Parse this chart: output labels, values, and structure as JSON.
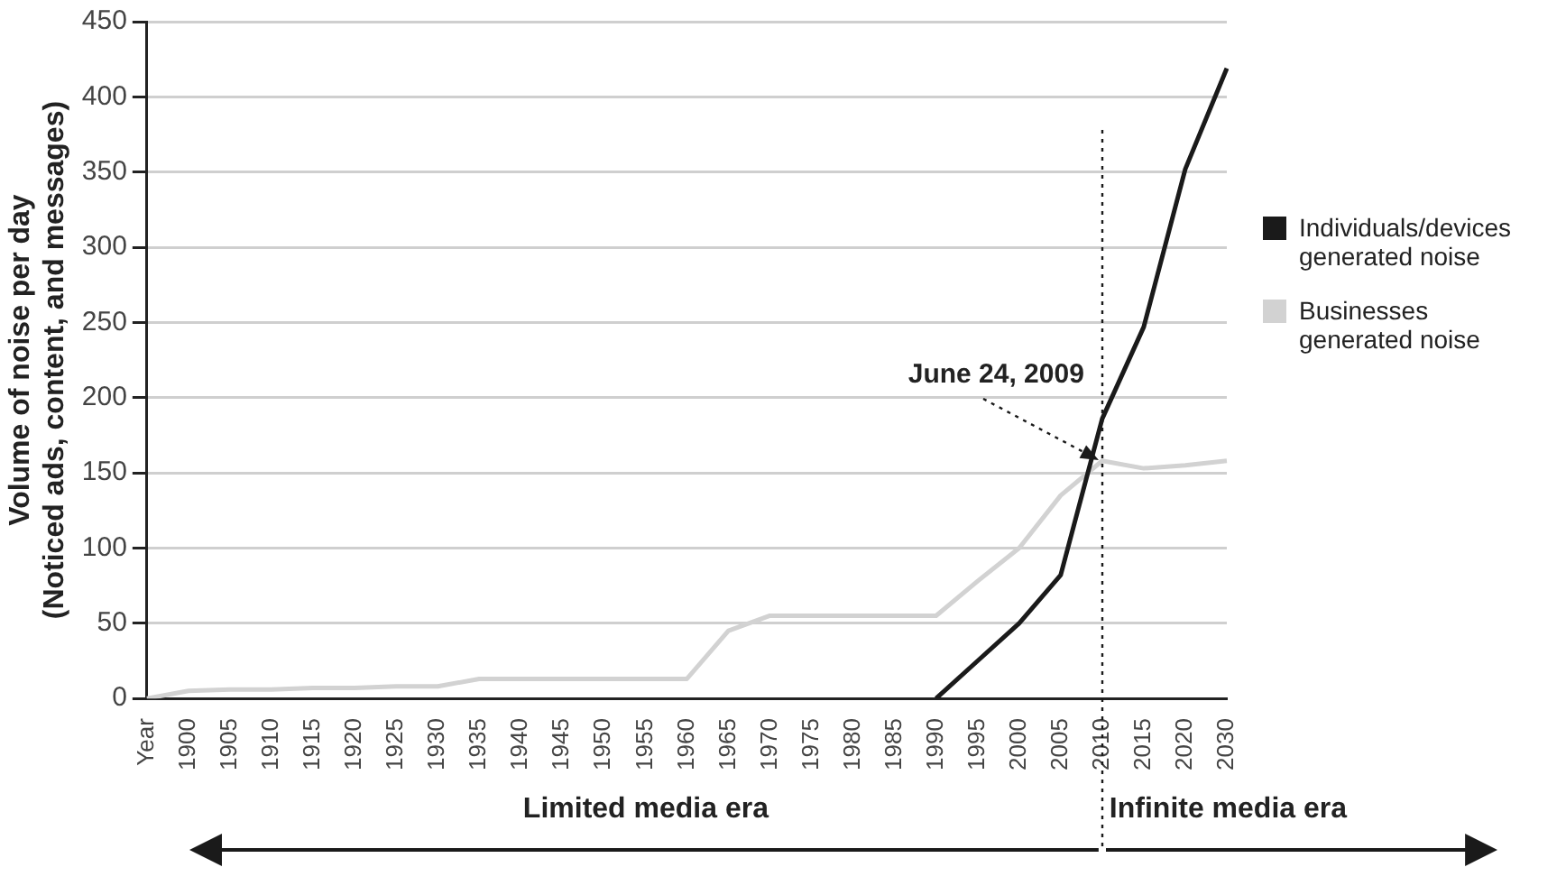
{
  "chart_data": {
    "type": "line",
    "ylabel": "Volume of noise per day\n(Noticed ads, content, and messages)",
    "categories": [
      "Year",
      "1900",
      "1905",
      "1910",
      "1915",
      "1920",
      "1925",
      "1930",
      "1935",
      "1940",
      "1945",
      "1950",
      "1955",
      "1960",
      "1965",
      "1970",
      "1975",
      "1980",
      "1985",
      "1990",
      "1995",
      "2000",
      "2005",
      "2010",
      "2015",
      "2020",
      "2030"
    ],
    "series": [
      {
        "name": "Individuals/devices generated noise",
        "color": "#1a1a1a",
        "values": [
          null,
          null,
          null,
          null,
          null,
          null,
          null,
          null,
          null,
          null,
          null,
          null,
          null,
          null,
          null,
          null,
          null,
          null,
          null,
          0,
          25,
          50,
          82,
          186,
          247,
          352,
          419
        ]
      },
      {
        "name": "Businesses generated noise",
        "color": "#d2d2d2",
        "values": [
          0,
          5,
          6,
          6,
          7,
          7,
          8,
          8,
          13,
          13,
          13,
          13,
          13,
          13,
          45,
          55,
          55,
          55,
          55,
          55,
          78,
          100,
          135,
          158,
          153,
          155,
          158
        ]
      }
    ],
    "ylim": [
      0,
      450
    ],
    "yticks": [
      0,
      50,
      100,
      150,
      200,
      250,
      300,
      350,
      400,
      450
    ],
    "grid": "y",
    "legend": "right",
    "marker": "none",
    "line_style": "solid",
    "ref_lines": [
      {
        "axis": "x",
        "value": "2010",
        "label": "June 24, 2009",
        "line_style": "dotted",
        "color": "#1a1a1a"
      }
    ],
    "annotations": [
      "Limited media era",
      "Infinite media era"
    ]
  }
}
